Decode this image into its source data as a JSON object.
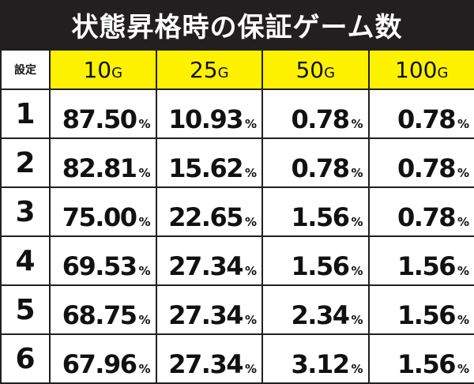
{
  "title": "状態昇格時の保証ゲーム数",
  "header": {
    "setting_label": "設定",
    "columns": [
      {
        "num": "10",
        "unit": "G"
      },
      {
        "num": "25",
        "unit": "G"
      },
      {
        "num": "50",
        "unit": "G"
      },
      {
        "num": "100",
        "unit": "G"
      }
    ]
  },
  "percent_sign": "%",
  "rows": [
    {
      "setting": "1",
      "values": [
        "87.50",
        "10.93",
        "0.78",
        "0.78"
      ]
    },
    {
      "setting": "2",
      "values": [
        "82.81",
        "15.62",
        "0.78",
        "0.78"
      ]
    },
    {
      "setting": "3",
      "values": [
        "75.00",
        "22.65",
        "1.56",
        "0.78"
      ]
    },
    {
      "setting": "4",
      "values": [
        "69.53",
        "27.34",
        "1.56",
        "1.56"
      ]
    },
    {
      "setting": "5",
      "values": [
        "68.75",
        "27.34",
        "2.34",
        "1.56"
      ]
    },
    {
      "setting": "6",
      "values": [
        "67.96",
        "27.34",
        "3.12",
        "1.56"
      ]
    }
  ],
  "colors": {
    "title_bg": "#231f20",
    "title_text": "#ffffff",
    "header_bg": "#fff200",
    "border": "#231f20"
  }
}
